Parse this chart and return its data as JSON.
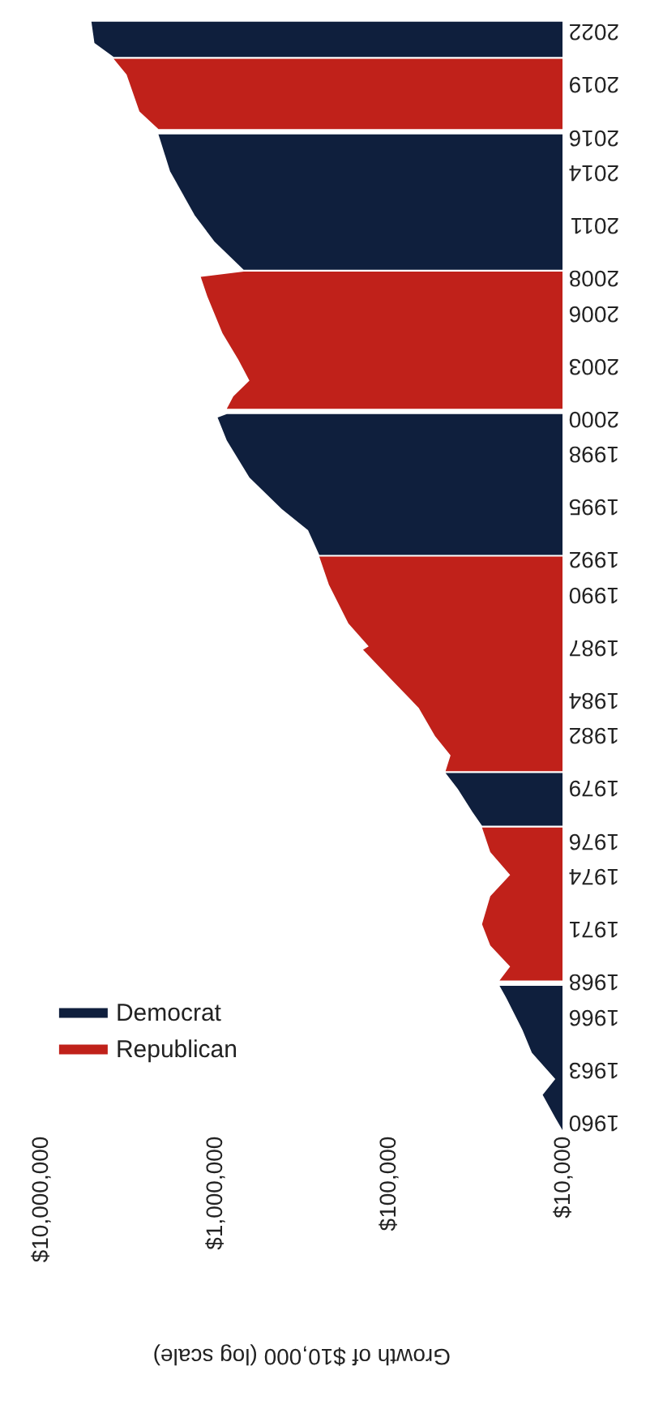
{
  "chart_data": {
    "type": "area",
    "orientation": "horizontal",
    "xlabel": "Growth of $10,000 (log scale)",
    "log": "x",
    "legend": "bottom left",
    "xlim": [
      10000000,
      10000
    ],
    "xticks": [
      {
        "value": 10000000,
        "label": "$10,000,000"
      },
      {
        "value": 1000000,
        "label": "$1,000,000"
      },
      {
        "value": 100000,
        "label": "$100,000"
      },
      {
        "value": 10000,
        "label": "$10,000"
      }
    ],
    "ylim": [
      1960,
      2023.5
    ],
    "yticks": [
      1960,
      1963,
      1966,
      1968,
      1971,
      1974,
      1976,
      1979,
      1982,
      1984,
      1987,
      1990,
      1992,
      1995,
      1998,
      2000,
      2003,
      2006,
      2008,
      2011,
      2014,
      2016,
      2019,
      2022
    ],
    "series": [
      {
        "name": "Democrat",
        "color": "#0f1f3d",
        "x": [
          1960.0,
          1960.7,
          1962.0,
          1962.9,
          1964.4,
          1965.7,
          1967.5,
          1968.2,
          1972.0,
          1977.3,
          1978.1,
          1979.4,
          1980.3,
          1986.0,
          1992.7,
          1994.1,
          1995.3,
          1997.1,
          1999.2,
          2000.5,
          2000.7,
          2005.0,
          2008.9,
          2010.5,
          2012.0,
          2014.5,
          2016.6,
          2019.0,
          2021.0,
          2021.8,
          2023.0
        ],
        "values": [
          10000,
          11000,
          13000,
          11000,
          15000,
          17000,
          21000,
          23000,
          null,
          29000,
          33000,
          40000,
          47000,
          null,
          250000,
          290000,
          410000,
          630000,
          850000,
          960000,
          850000,
          null,
          680000,
          1000000,
          1300000,
          1800000,
          2100000,
          null,
          3800000,
          4900000,
          5100000
        ]
      },
      {
        "name": "Republican",
        "color": "#c0211a",
        "x": [
          1968.5,
          1969.3,
          1970.5,
          1971.7,
          1973.3,
          1974.5,
          1975.8,
          1977.2,
          1978.5,
          1980.4,
          1981.3,
          1982.4,
          1984.0,
          1985.5,
          1987.3,
          1987.5,
          1988.8,
          1991.0,
          1992.6,
          1996.0,
          2001.0,
          2001.7,
          2002.6,
          2003.8,
          2005.3,
          2007.4,
          2008.5,
          2008.8,
          2012.0,
          2016.9,
          2017.9,
          2020.0,
          2020.9
        ],
        "values": [
          23000,
          20000,
          26000,
          29000,
          26000,
          20000,
          26000,
          29000,
          null,
          47000,
          44000,
          54000,
          67000,
          94000,
          140000,
          130000,
          170000,
          220000,
          250000,
          null,
          850000,
          780000,
          630000,
          730000,
          900000,
          1100000,
          1200000,
          680000,
          null,
          2100000,
          2700000,
          3200000,
          3800000
        ]
      }
    ]
  }
}
